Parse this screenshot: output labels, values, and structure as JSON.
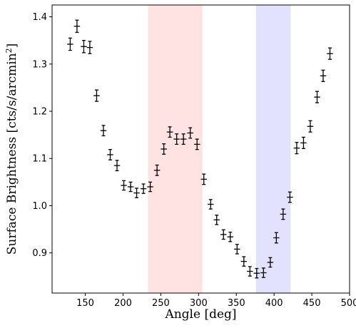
{
  "chart_data": {
    "type": "scatter",
    "xlabel": "Angle [deg]",
    "ylabel_main": "Surface Brightness [cts/s/arcmin",
    "ylabel_sup": "2",
    "ylabel_close": "]",
    "xlim": [
      106,
      500
    ],
    "ylim": [
      0.815,
      1.425
    ],
    "xticks": [
      150,
      200,
      250,
      300,
      350,
      400,
      450,
      500
    ],
    "yticks": [
      0.9,
      1.0,
      1.1,
      1.2,
      1.3,
      1.4
    ],
    "grid": false,
    "bands": [
      {
        "x0": 233,
        "x1": 305,
        "color": "#ffe2e2"
      },
      {
        "x0": 376,
        "x1": 422,
        "color": "#e2e2ff"
      }
    ],
    "points": [
      {
        "x": 130,
        "y": 1.342,
        "xerr": 4,
        "yerr": 0.013
      },
      {
        "x": 139,
        "y": 1.38,
        "xerr": 4,
        "yerr": 0.013
      },
      {
        "x": 148,
        "y": 1.337,
        "xerr": 4,
        "yerr": 0.013
      },
      {
        "x": 156,
        "y": 1.335,
        "xerr": 4,
        "yerr": 0.013
      },
      {
        "x": 165,
        "y": 1.233,
        "xerr": 4,
        "yerr": 0.012
      },
      {
        "x": 174,
        "y": 1.159,
        "xerr": 4,
        "yerr": 0.011
      },
      {
        "x": 183,
        "y": 1.108,
        "xerr": 4,
        "yerr": 0.011
      },
      {
        "x": 192,
        "y": 1.085,
        "xerr": 4,
        "yerr": 0.011
      },
      {
        "x": 201,
        "y": 1.043,
        "xerr": 4,
        "yerr": 0.01
      },
      {
        "x": 210,
        "y": 1.04,
        "xerr": 4,
        "yerr": 0.01
      },
      {
        "x": 218,
        "y": 1.027,
        "xerr": 4,
        "yerr": 0.01
      },
      {
        "x": 227,
        "y": 1.036,
        "xerr": 4,
        "yerr": 0.01
      },
      {
        "x": 236,
        "y": 1.04,
        "xerr": 4,
        "yerr": 0.01
      },
      {
        "x": 245,
        "y": 1.075,
        "xerr": 4,
        "yerr": 0.011
      },
      {
        "x": 254,
        "y": 1.12,
        "xerr": 4,
        "yerr": 0.011
      },
      {
        "x": 262,
        "y": 1.156,
        "xerr": 4,
        "yerr": 0.011
      },
      {
        "x": 271,
        "y": 1.141,
        "xerr": 4,
        "yerr": 0.011
      },
      {
        "x": 280,
        "y": 1.141,
        "xerr": 4,
        "yerr": 0.011
      },
      {
        "x": 289,
        "y": 1.154,
        "xerr": 4,
        "yerr": 0.011
      },
      {
        "x": 298,
        "y": 1.13,
        "xerr": 4,
        "yerr": 0.011
      },
      {
        "x": 307,
        "y": 1.056,
        "xerr": 4,
        "yerr": 0.011
      },
      {
        "x": 316,
        "y": 1.003,
        "xerr": 4,
        "yerr": 0.01
      },
      {
        "x": 324,
        "y": 0.97,
        "xerr": 4,
        "yerr": 0.01
      },
      {
        "x": 333,
        "y": 0.939,
        "xerr": 4,
        "yerr": 0.01
      },
      {
        "x": 342,
        "y": 0.934,
        "xerr": 4,
        "yerr": 0.01
      },
      {
        "x": 351,
        "y": 0.908,
        "xerr": 4,
        "yerr": 0.01
      },
      {
        "x": 360,
        "y": 0.882,
        "xerr": 4,
        "yerr": 0.01
      },
      {
        "x": 368,
        "y": 0.861,
        "xerr": 4,
        "yerr": 0.01
      },
      {
        "x": 377,
        "y": 0.857,
        "xerr": 4,
        "yerr": 0.01
      },
      {
        "x": 386,
        "y": 0.858,
        "xerr": 4,
        "yerr": 0.01
      },
      {
        "x": 395,
        "y": 0.88,
        "xerr": 4,
        "yerr": 0.01
      },
      {
        "x": 403,
        "y": 0.932,
        "xerr": 4,
        "yerr": 0.011
      },
      {
        "x": 412,
        "y": 0.982,
        "xerr": 4,
        "yerr": 0.011
      },
      {
        "x": 421,
        "y": 1.018,
        "xerr": 4,
        "yerr": 0.011
      },
      {
        "x": 430,
        "y": 1.122,
        "xerr": 4,
        "yerr": 0.012
      },
      {
        "x": 439,
        "y": 1.133,
        "xerr": 4,
        "yerr": 0.012
      },
      {
        "x": 448,
        "y": 1.168,
        "xerr": 4,
        "yerr": 0.012
      },
      {
        "x": 457,
        "y": 1.23,
        "xerr": 4,
        "yerr": 0.012
      },
      {
        "x": 465,
        "y": 1.275,
        "xerr": 4,
        "yerr": 0.012
      },
      {
        "x": 474,
        "y": 1.322,
        "xerr": 4,
        "yerr": 0.012
      }
    ]
  }
}
